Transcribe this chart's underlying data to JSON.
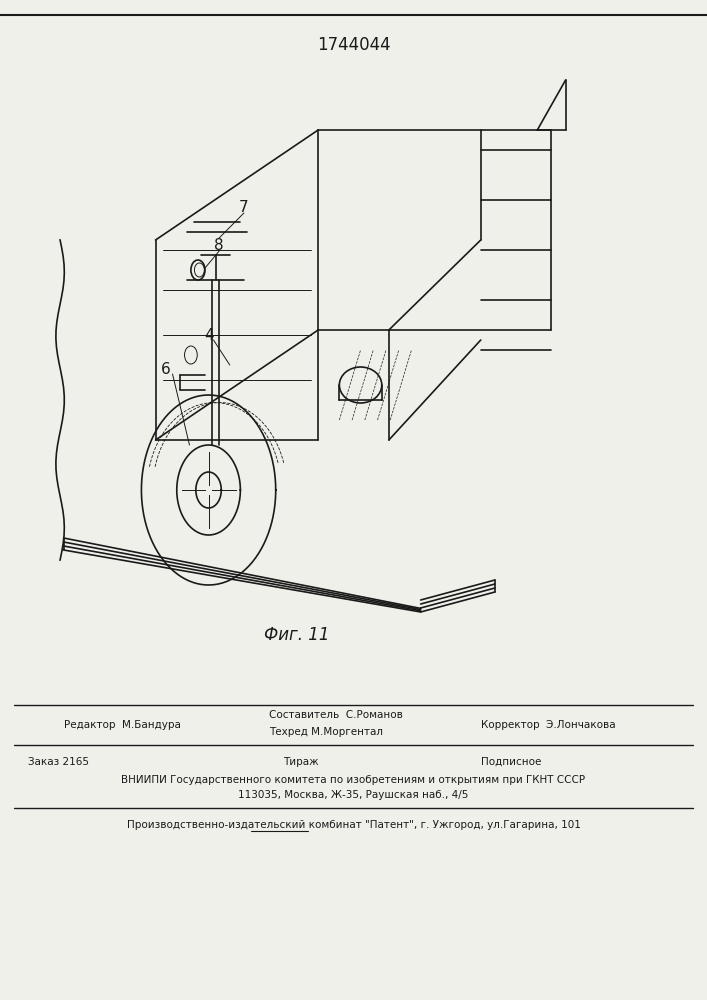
{
  "patent_number": "1744044",
  "fig_label": "Фиг. 11",
  "bg_color": "#f0f0eb",
  "line_color": "#1a1a1a",
  "footer": {
    "editor_label": "Редактор  М.Бандура",
    "composer_label": "Составитель  С.Романов",
    "techred_label": "Техред М.Моргентал",
    "corrector_label": "Корректор  Э.Лончакова",
    "order_label": "Заказ 2165",
    "tirazh_label": "Тираж",
    "podpisnoe_label": "Подписное",
    "vniiipi_line": "ВНИИПИ Государственного комитета по изобретениям и открытиям при ГКНТ СССР",
    "address_line": "113035, Москва, Ж-35, Раушская наб., 4/5",
    "publisher_line": "Производственно-издательский комбинат \"Патент\", г. Ужгород, ул.Гагарина, 101"
  }
}
